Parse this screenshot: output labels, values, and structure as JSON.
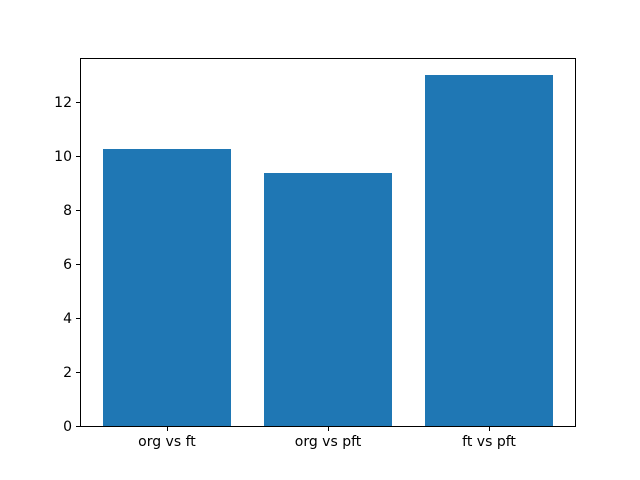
{
  "chart_data": {
    "type": "bar",
    "title": "",
    "xlabel": "",
    "ylabel": "",
    "categories": [
      "org vs ft",
      "org vs pft",
      "ft vs pft"
    ],
    "values": [
      10.25,
      9.35,
      13.0
    ],
    "yticks": [
      0,
      2,
      4,
      6,
      8,
      10,
      12
    ],
    "ylim": [
      0,
      13.65
    ],
    "xlim": [
      -0.54,
      2.54
    ],
    "bar_width": 0.8,
    "bar_color": "#1f77b4",
    "background_color": "#ffffff",
    "spine_color": "#000000",
    "grid": false,
    "legend_position": "none"
  }
}
